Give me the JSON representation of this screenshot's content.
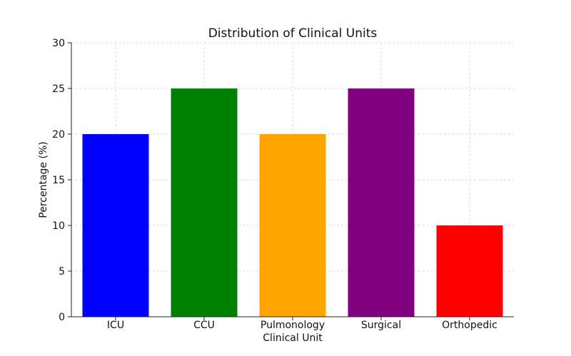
{
  "chart_data": {
    "type": "bar",
    "title": "Distribution of Clinical Units",
    "xlabel": "Clinical Unit",
    "ylabel": "Percentage (%)",
    "categories": [
      "ICU",
      "CCU",
      "Pulmonology",
      "Surgical",
      "Orthopedic"
    ],
    "values": [
      20,
      25,
      20,
      25,
      10
    ],
    "colors": [
      "#0000ff",
      "#008000",
      "#ffa500",
      "#800080",
      "#ff0000"
    ],
    "ylim": [
      0,
      30
    ],
    "yticks": [
      0,
      5,
      10,
      15,
      20,
      25,
      30
    ],
    "grid": true,
    "legend": "none"
  }
}
